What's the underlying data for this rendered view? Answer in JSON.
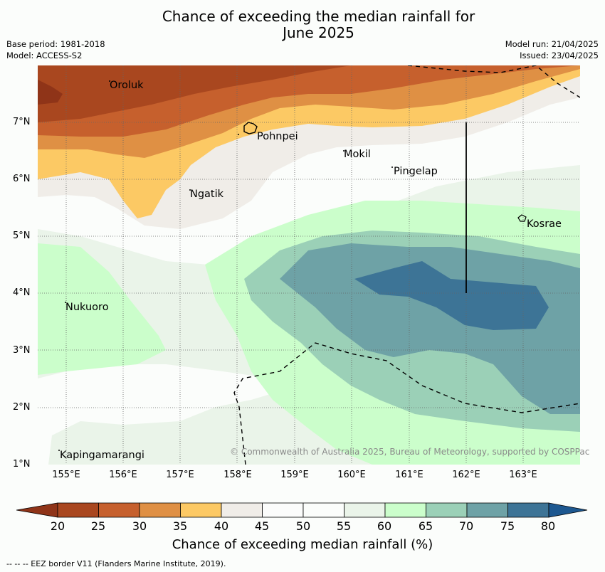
{
  "title_line1": "Chance of exceeding the median rainfall for",
  "title_line2": "June 2025",
  "base_period": "Base period: 1981-2018",
  "model": "Model: ACCESS-S2",
  "model_run": "Model run: 21/04/2025",
  "issued": "Issued: 23/04/2025",
  "y_ticks": [
    "7°N",
    "6°N",
    "5°N",
    "4°N",
    "3°N",
    "2°N",
    "1°N"
  ],
  "x_ticks": [
    "155°E",
    "156°E",
    "157°E",
    "158°E",
    "159°E",
    "160°E",
    "161°E",
    "162°E",
    "163°E"
  ],
  "places": {
    "oroluk": "Oroluk",
    "pohnpei": "Pohnpei",
    "mokil": "Mokil",
    "pingelap": "Pingelap",
    "ngatik": "Ngatik",
    "kosrae": "Kosrae",
    "nukuoro": "Nukuoro",
    "kapingamarangi": "Kapingamarangi"
  },
  "copyright": "© Commonwealth of Australia 2025, Bureau of Meteorology, supported by COSPPac",
  "colorbar": {
    "ticks": [
      "20",
      "25",
      "30",
      "35",
      "40",
      "45",
      "50",
      "55",
      "60",
      "65",
      "70",
      "75",
      "80"
    ],
    "colors": [
      "#a9471f",
      "#c6602d",
      "#df9044",
      "#fcc964",
      "#f0ede8",
      "#fbfcfb",
      "#fbfdfb",
      "#eaf4e9",
      "#cbfecb",
      "#9bd0b7",
      "#6ea2a6",
      "#3d7496"
    ],
    "under_color": "#8f3418",
    "over_color": "#1d5890",
    "label": "Chance of exceeding median rainfall (%)"
  },
  "footnote": "--  --  -- EEZ border V11 (Flanders Marine Institute, 2019)."
}
